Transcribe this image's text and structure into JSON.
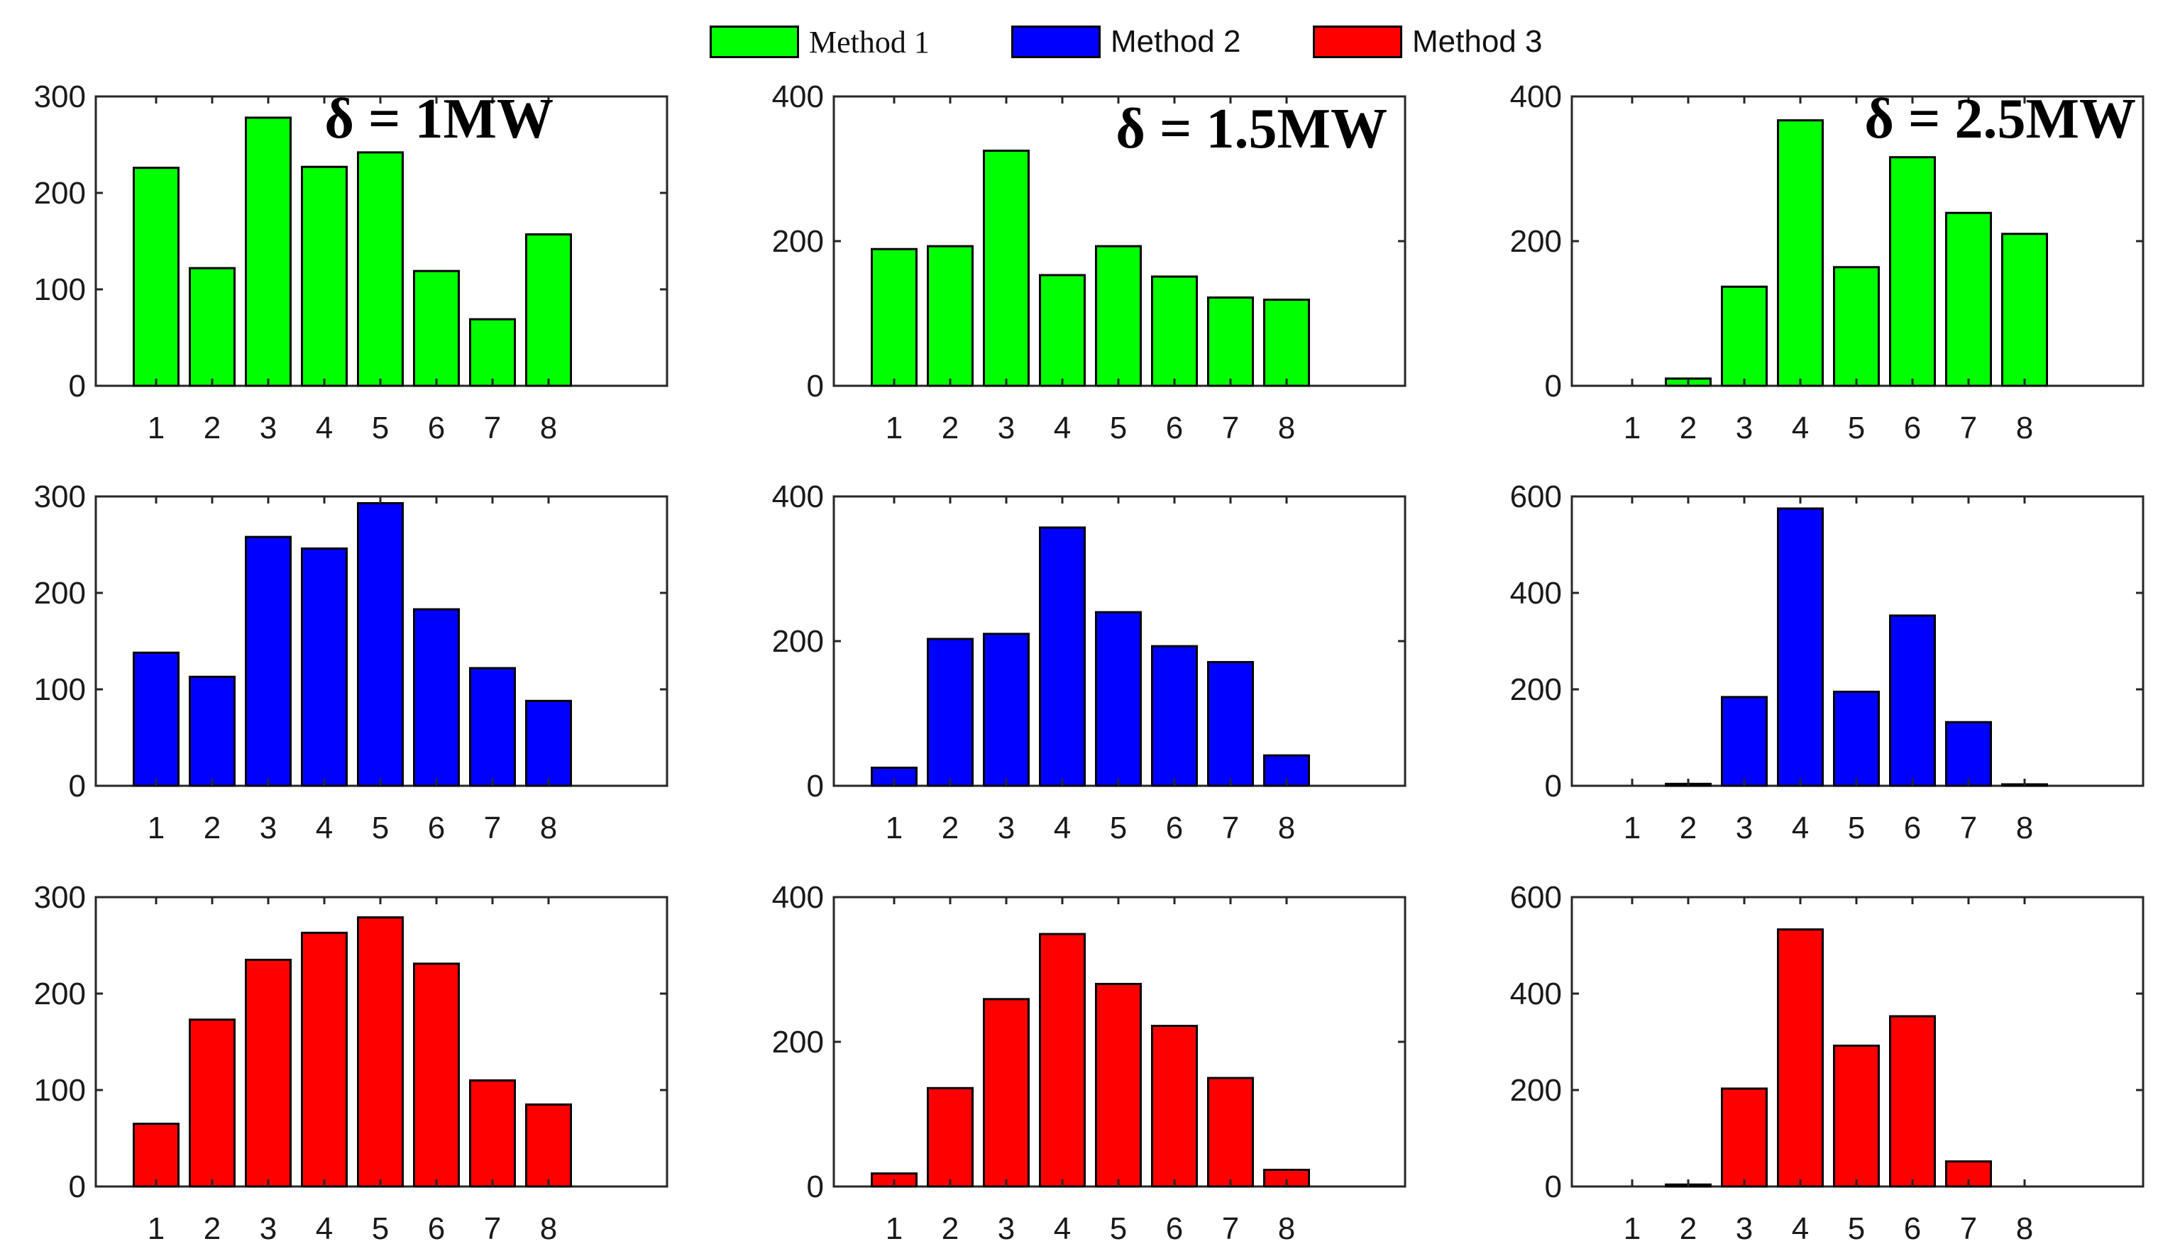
{
  "legend": [
    {
      "name": "Method 1",
      "color": "#00ff00"
    },
    {
      "name": "Method 2",
      "color": "#0000ff"
    },
    {
      "name": "Method 3",
      "color": "#ff0000"
    }
  ],
  "chart_data": [
    {
      "type": "bar",
      "method": "Method 1",
      "categories": [
        "1",
        "2",
        "3",
        "4",
        "5",
        "6",
        "7",
        "8"
      ],
      "values": [
        226,
        122,
        278,
        227,
        242,
        119,
        69,
        157
      ],
      "ylim": [
        0,
        300
      ],
      "yticks": [
        0,
        100,
        200,
        300
      ],
      "annotation": "δ = 1MW",
      "color": "#00ff00"
    },
    {
      "type": "bar",
      "method": "Method 1",
      "categories": [
        "1",
        "2",
        "3",
        "4",
        "5",
        "6",
        "7",
        "8"
      ],
      "values": [
        189,
        193,
        325,
        153,
        193,
        151,
        122,
        119
      ],
      "ylim": [
        0,
        400
      ],
      "yticks": [
        0,
        200,
        400
      ],
      "annotation": "δ = 1.5MW",
      "color": "#00ff00"
    },
    {
      "type": "bar",
      "method": "Method 1",
      "categories": [
        "1",
        "2",
        "3",
        "4",
        "5",
        "6",
        "7",
        "8"
      ],
      "values": [
        0,
        10,
        137,
        367,
        164,
        316,
        239,
        210
      ],
      "ylim": [
        0,
        400
      ],
      "yticks": [
        0,
        200,
        400
      ],
      "annotation": "δ = 2.5MW",
      "color": "#00ff00"
    },
    {
      "type": "bar",
      "method": "Method 2",
      "categories": [
        "1",
        "2",
        "3",
        "4",
        "5",
        "6",
        "7",
        "8"
      ],
      "values": [
        138,
        113,
        258,
        246,
        293,
        183,
        122,
        88
      ],
      "ylim": [
        0,
        300
      ],
      "yticks": [
        0,
        100,
        200,
        300
      ],
      "color": "#0000ff"
    },
    {
      "type": "bar",
      "method": "Method 2",
      "categories": [
        "1",
        "2",
        "3",
        "4",
        "5",
        "6",
        "7",
        "8"
      ],
      "values": [
        25,
        203,
        210,
        357,
        240,
        193,
        171,
        42
      ],
      "ylim": [
        0,
        400
      ],
      "yticks": [
        0,
        200,
        400
      ],
      "color": "#0000ff"
    },
    {
      "type": "bar",
      "method": "Method 2",
      "categories": [
        "1",
        "2",
        "3",
        "4",
        "5",
        "6",
        "7",
        "8"
      ],
      "values": [
        0,
        4,
        184,
        575,
        195,
        353,
        132,
        3
      ],
      "ylim": [
        0,
        600
      ],
      "yticks": [
        0,
        200,
        400,
        600
      ],
      "color": "#0000ff"
    },
    {
      "type": "bar",
      "method": "Method 3",
      "categories": [
        "1",
        "2",
        "3",
        "4",
        "5",
        "6",
        "7",
        "8"
      ],
      "values": [
        65,
        173,
        235,
        263,
        279,
        231,
        110,
        85
      ],
      "ylim": [
        0,
        300
      ],
      "yticks": [
        0,
        100,
        200,
        300
      ],
      "color": "#ff0000"
    },
    {
      "type": "bar",
      "method": "Method 3",
      "categories": [
        "1",
        "2",
        "3",
        "4",
        "5",
        "6",
        "7",
        "8"
      ],
      "values": [
        18,
        136,
        259,
        349,
        280,
        222,
        150,
        23
      ],
      "ylim": [
        0,
        400
      ],
      "yticks": [
        0,
        200,
        400
      ],
      "color": "#ff0000"
    },
    {
      "type": "bar",
      "method": "Method 3",
      "categories": [
        "1",
        "2",
        "3",
        "4",
        "5",
        "6",
        "7",
        "8"
      ],
      "values": [
        0,
        4,
        203,
        533,
        292,
        353,
        52,
        0
      ],
      "ylim": [
        0,
        600
      ],
      "yticks": [
        0,
        200,
        400,
        600
      ],
      "color": "#ff0000"
    }
  ]
}
